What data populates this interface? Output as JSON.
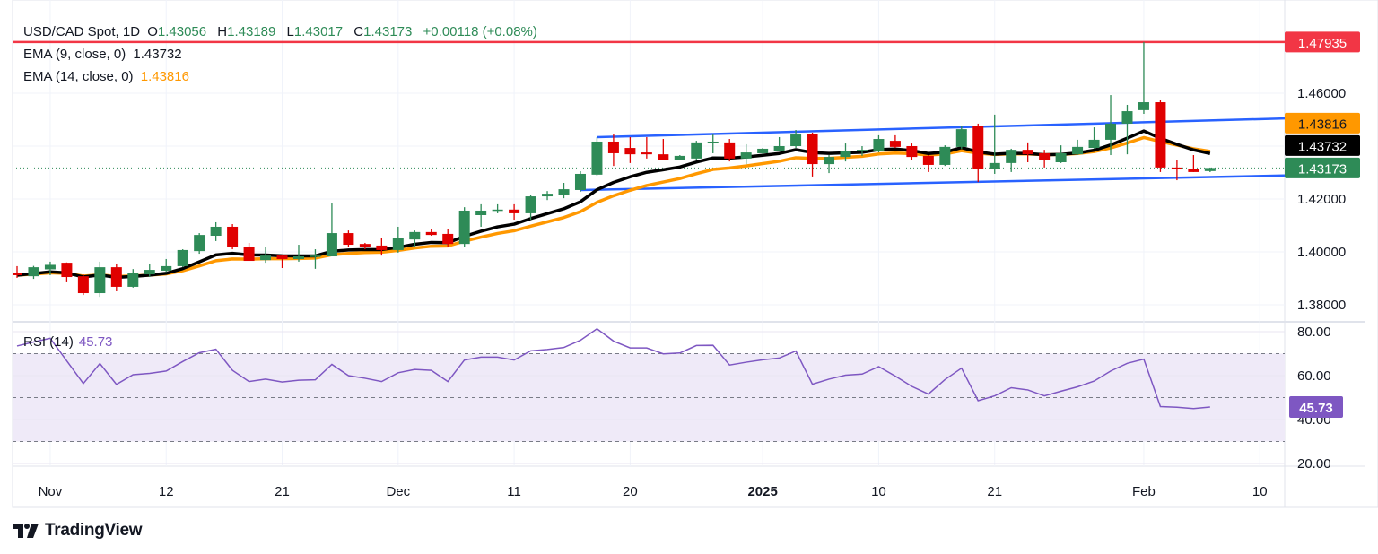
{
  "header": {
    "symbol": "USD/CAD Spot, 1D",
    "o_label": "O",
    "o": "1.43056",
    "h_label": "H",
    "h": "1.43189",
    "l_label": "L",
    "l": "1.43017",
    "c_label": "C",
    "c": "1.43173",
    "change": "+0.00118 (+0.08%)"
  },
  "indicators": {
    "ema9_label": "EMA (9, close, 0)",
    "ema9_value": "1.43732",
    "ema14_label": "EMA (14, close, 0)",
    "ema14_value": "1.43816",
    "rsi_label": "RSI (14)",
    "rsi_value": "45.73"
  },
  "colors": {
    "up": "#2e8b57",
    "down": "#e00000",
    "ema9": "#000000",
    "ema14": "#ff9800",
    "channel": "#2962ff",
    "resistance": "#f23645",
    "rsi": "#7e57c2",
    "rsi_band": "#efeaf8"
  },
  "chart_data": [
    {
      "type": "candlestick",
      "title": "USD/CAD Spot, 1D",
      "ylim": [
        1.37,
        1.485
      ],
      "y_ticks": [
        "1.38000",
        "1.40000",
        "1.42000",
        "1.46000"
      ],
      "x_ticks": [
        {
          "label": "Nov",
          "date": "2024-11-01"
        },
        {
          "label": "12",
          "date": "2024-11-12"
        },
        {
          "label": "21",
          "date": "2024-11-21"
        },
        {
          "label": "Dec",
          "date": "2024-12-02"
        },
        {
          "label": "11",
          "date": "2024-12-11"
        },
        {
          "label": "20",
          "date": "2024-12-20"
        },
        {
          "label": "2025",
          "date": "2025-01-01"
        },
        {
          "label": "10",
          "date": "2025-01-10"
        },
        {
          "label": "21",
          "date": "2025-01-21"
        },
        {
          "label": "Feb",
          "date": "2025-02-03"
        },
        {
          "label": "10",
          "date": "2025-02-10"
        }
      ],
      "columns": [
        "date",
        "open",
        "high",
        "low",
        "close"
      ],
      "ohlc": [
        [
          "2024-10-30",
          1.3922,
          1.3946,
          1.3902,
          1.3912
        ],
        [
          "2024-10-31",
          1.3908,
          1.3947,
          1.3898,
          1.3942
        ],
        [
          "2024-11-01",
          1.3934,
          1.3963,
          1.3912,
          1.3951
        ],
        [
          "2024-11-04",
          1.3959,
          1.396,
          1.3885,
          1.3905
        ],
        [
          "2024-11-05",
          1.3908,
          1.3915,
          1.3837,
          1.3844
        ],
        [
          "2024-11-06",
          1.3844,
          1.3963,
          1.383,
          1.3942
        ],
        [
          "2024-11-07",
          1.3942,
          1.3956,
          1.3851,
          1.3868
        ],
        [
          "2024-11-08",
          1.3868,
          1.3935,
          1.3865,
          1.3922
        ],
        [
          "2024-11-11",
          1.3915,
          1.3956,
          1.3905,
          1.3932
        ],
        [
          "2024-11-12",
          1.3929,
          1.3973,
          1.3924,
          1.3946
        ],
        [
          "2024-11-13",
          1.3946,
          1.401,
          1.3942,
          1.4007
        ],
        [
          "2024-11-14",
          1.4003,
          1.4071,
          1.3993,
          1.4064
        ],
        [
          "2024-11-15",
          1.4061,
          1.4112,
          1.4041,
          1.4095
        ],
        [
          "2024-11-18",
          1.4095,
          1.4105,
          1.401,
          1.4017
        ],
        [
          "2024-11-19",
          1.402,
          1.4034,
          1.3966,
          1.3966
        ],
        [
          "2024-11-20",
          1.3969,
          1.402,
          1.3959,
          1.3986
        ],
        [
          "2024-11-21",
          1.3986,
          1.399,
          1.3939,
          1.3973
        ],
        [
          "2024-11-22",
          1.3973,
          1.4027,
          1.3963,
          1.3983
        ],
        [
          "2024-11-25",
          1.3983,
          1.401,
          1.3936,
          1.3986
        ],
        [
          "2024-11-26",
          1.3983,
          1.4183,
          1.3983,
          1.4071
        ],
        [
          "2024-11-27",
          1.4071,
          1.4081,
          1.4017,
          1.4027
        ],
        [
          "2024-11-28",
          1.403,
          1.4034,
          1.401,
          1.4017
        ],
        [
          "2024-11-29",
          1.4024,
          1.4051,
          1.3986,
          1.4007
        ],
        [
          "2024-12-02",
          1.4007,
          1.4095,
          1.3997,
          1.4051
        ],
        [
          "2024-12-03",
          1.4047,
          1.4081,
          1.4017,
          1.4075
        ],
        [
          "2024-12-04",
          1.4075,
          1.4088,
          1.4061,
          1.4064
        ],
        [
          "2024-12-05",
          1.4068,
          1.4085,
          1.4017,
          1.403
        ],
        [
          "2024-12-06",
          1.403,
          1.4169,
          1.402,
          1.4156
        ],
        [
          "2024-12-09",
          1.4139,
          1.418,
          1.4095,
          1.4156
        ],
        [
          "2024-12-10",
          1.4156,
          1.418,
          1.4146,
          1.416
        ],
        [
          "2024-12-11",
          1.416,
          1.418,
          1.4122,
          1.4146
        ],
        [
          "2024-12-12",
          1.4146,
          1.4217,
          1.4122,
          1.421
        ],
        [
          "2024-12-13",
          1.421,
          1.423,
          1.4196,
          1.422
        ],
        [
          "2024-12-16",
          1.4217,
          1.4261,
          1.4203,
          1.4237
        ],
        [
          "2024-12-17",
          1.4234,
          1.4305,
          1.4227,
          1.4295
        ],
        [
          "2024-12-18",
          1.4292,
          1.4434,
          1.4288,
          1.4417
        ],
        [
          "2024-12-19",
          1.4417,
          1.4444,
          1.4325,
          1.4373
        ],
        [
          "2024-12-20",
          1.4393,
          1.4434,
          1.4336,
          1.4369
        ],
        [
          "2024-12-23",
          1.4376,
          1.4434,
          1.4353,
          1.4369
        ],
        [
          "2024-12-24",
          1.4369,
          1.4427,
          1.4346,
          1.4349
        ],
        [
          "2024-12-25",
          1.4349,
          1.4366,
          1.4346,
          1.4363
        ],
        [
          "2024-12-26",
          1.4353,
          1.442,
          1.4349,
          1.4414
        ],
        [
          "2024-12-27",
          1.4414,
          1.4447,
          1.4373,
          1.4417
        ],
        [
          "2024-12-30",
          1.4414,
          1.4427,
          1.4342,
          1.4353
        ],
        [
          "2024-12-31",
          1.4353,
          1.4407,
          1.4332,
          1.4376
        ],
        [
          "2025-01-01",
          1.4373,
          1.4393,
          1.4369,
          1.439
        ],
        [
          "2025-01-02",
          1.4383,
          1.4434,
          1.438,
          1.44
        ],
        [
          "2025-01-03",
          1.44,
          1.4461,
          1.4393,
          1.4444
        ],
        [
          "2025-01-06",
          1.4447,
          1.4451,
          1.4285,
          1.4332
        ],
        [
          "2025-01-07",
          1.4332,
          1.4366,
          1.4298,
          1.4359
        ],
        [
          "2025-01-08",
          1.4359,
          1.441,
          1.4342,
          1.4383
        ],
        [
          "2025-01-09",
          1.438,
          1.44,
          1.4363,
          1.4386
        ],
        [
          "2025-01-10",
          1.4383,
          1.4441,
          1.4376,
          1.4427
        ],
        [
          "2025-01-13",
          1.442,
          1.4441,
          1.4393,
          1.4397
        ],
        [
          "2025-01-14",
          1.44,
          1.441,
          1.4349,
          1.4359
        ],
        [
          "2025-01-15",
          1.4363,
          1.4366,
          1.4302,
          1.4329
        ],
        [
          "2025-01-16",
          1.4329,
          1.4403,
          1.4325,
          1.4397
        ],
        [
          "2025-01-17",
          1.4397,
          1.4475,
          1.439,
          1.4464
        ],
        [
          "2025-01-20",
          1.4475,
          1.4485,
          1.4264,
          1.4312
        ],
        [
          "2025-01-21",
          1.4312,
          1.4519,
          1.4295,
          1.4336
        ],
        [
          "2025-01-22",
          1.4336,
          1.439,
          1.4302,
          1.4386
        ],
        [
          "2025-01-23",
          1.4386,
          1.4414,
          1.4339,
          1.4369
        ],
        [
          "2025-01-24",
          1.4373,
          1.4386,
          1.4319,
          1.4349
        ],
        [
          "2025-01-27",
          1.4339,
          1.4403,
          1.4336,
          1.4373
        ],
        [
          "2025-01-28",
          1.4369,
          1.4424,
          1.4366,
          1.4397
        ],
        [
          "2025-01-29",
          1.4393,
          1.4471,
          1.439,
          1.4424
        ],
        [
          "2025-01-30",
          1.4424,
          1.4593,
          1.4366,
          1.4485
        ],
        [
          "2025-01-31",
          1.4485,
          1.4556,
          1.4369,
          1.4532
        ],
        [
          "2025-02-03",
          1.4536,
          1.47935,
          1.4522,
          1.4566
        ],
        [
          "2025-02-04",
          1.4566,
          1.4573,
          1.4302,
          1.4319
        ],
        [
          "2025-02-05",
          1.4319,
          1.4346,
          1.4271,
          1.4315
        ],
        [
          "2025-02-06",
          1.4315,
          1.4366,
          1.4302,
          1.4302
        ],
        [
          "2025-02-07",
          1.43056,
          1.43189,
          1.43017,
          1.43173
        ]
      ],
      "ema_periods": [
        9,
        14
      ],
      "last_price": 1.43173,
      "last_price_label": "1.43173",
      "ema9_last_label": "1.43732",
      "ema14_last_label": "1.43816",
      "resistance": {
        "price": 1.47935,
        "label": "1.47935"
      },
      "channel": {
        "upper": [
          [
            "2024-12-18",
            1.4434
          ],
          [
            "2025-02-07",
            1.4497
          ]
        ],
        "lower": [
          [
            "2024-12-17",
            1.4234
          ],
          [
            "2025-02-07",
            1.4283
          ]
        ],
        "extend": "right"
      }
    },
    {
      "type": "line",
      "title": "RSI (14)",
      "ylim": [
        15,
        84
      ],
      "y_ticks": [
        "20.00",
        "40.00",
        "60.00",
        "80.00"
      ],
      "levels": [
        70,
        50,
        30
      ],
      "band": [
        30,
        70
      ],
      "values": [
        73.5,
        75.3,
        77,
        66.7,
        56.4,
        65.5,
        56,
        60.4,
        61,
        62.1,
        66.4,
        70.4,
        72,
        62.4,
        57.3,
        58.4,
        57.1,
        57.9,
        58.1,
        65.1,
        60,
        58.8,
        57.3,
        61.3,
        62.8,
        62.4,
        57.3,
        67.1,
        68.4,
        68.4,
        67.1,
        71.3,
        71.9,
        72.8,
        76.1,
        81.3,
        75.7,
        72.6,
        72.6,
        69.9,
        70.3,
        73.7,
        73.8,
        64.8,
        66.1,
        67.2,
        68,
        71.2,
        56.1,
        58.4,
        60.2,
        60.7,
        64.1,
        59.8,
        55.1,
        51.6,
        58.2,
        63.4,
        48.6,
        50.8,
        54.5,
        53.5,
        50.8,
        52.9,
        54.9,
        57.5,
        62.1,
        65.6,
        67.5,
        45.9,
        45.6,
        45,
        45.73
      ],
      "last_label": "45.73"
    }
  ],
  "branding": {
    "logo_text": "TradingView"
  }
}
